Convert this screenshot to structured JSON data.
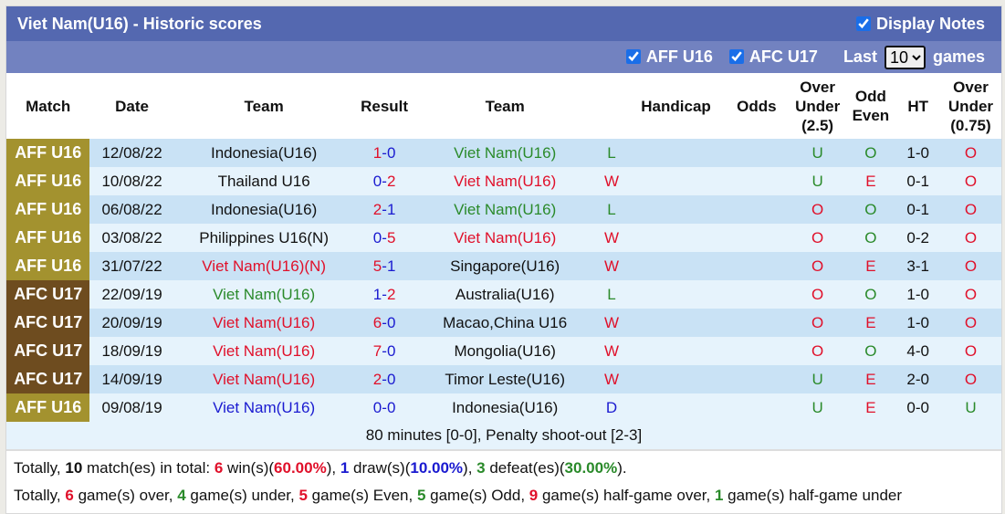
{
  "title": "Viet Nam(U16) - Historic scores",
  "display_notes": "Display Notes",
  "filters": [
    {
      "label": "AFF U16",
      "checked": true
    },
    {
      "label": "AFC U17",
      "checked": true
    }
  ],
  "last_label": "Last",
  "last_value": "10",
  "games_label": "games",
  "headers": [
    "Match",
    "Date",
    "Team",
    "Result",
    "Team",
    "",
    "Handicap",
    "Odds",
    "Over Under (2.5)",
    "Odd Even",
    "HT",
    "Over Under (0.75)"
  ],
  "colors": {
    "AFF U16": "#a3922f",
    "AFC U17": "#6e4c1f",
    "red": "#e0102a",
    "green": "#2a8a2a",
    "blue": "#1a1ad0"
  },
  "rows": [
    {
      "match": "AFF U16",
      "date": "12/08/22",
      "home": "Indonesia(U16)",
      "score": "1-0",
      "away": "Viet Nam(U16)",
      "wl": "L",
      "handicap": "",
      "odds": "",
      "ou": "U",
      "oe": "O",
      "ht": "1-0",
      "ou075": "O"
    },
    {
      "match": "AFF U16",
      "date": "10/08/22",
      "home": "Thailand U16",
      "score": "0-2",
      "away": "Viet Nam(U16)",
      "wl": "W",
      "handicap": "",
      "odds": "",
      "ou": "U",
      "oe": "E",
      "ht": "0-1",
      "ou075": "O"
    },
    {
      "match": "AFF U16",
      "date": "06/08/22",
      "home": "Indonesia(U16)",
      "score": "2-1",
      "away": "Viet Nam(U16)",
      "wl": "L",
      "handicap": "",
      "odds": "",
      "ou": "O",
      "oe": "O",
      "ht": "0-1",
      "ou075": "O"
    },
    {
      "match": "AFF U16",
      "date": "03/08/22",
      "home": "Philippines U16(N)",
      "score": "0-5",
      "away": "Viet Nam(U16)",
      "wl": "W",
      "handicap": "",
      "odds": "",
      "ou": "O",
      "oe": "O",
      "ht": "0-2",
      "ou075": "O"
    },
    {
      "match": "AFF U16",
      "date": "31/07/22",
      "home": "Viet Nam(U16)(N)",
      "score": "5-1",
      "away": "Singapore(U16)",
      "wl": "W",
      "handicap": "",
      "odds": "",
      "ou": "O",
      "oe": "E",
      "ht": "3-1",
      "ou075": "O"
    },
    {
      "match": "AFC U17",
      "date": "22/09/19",
      "home": "Viet Nam(U16)",
      "score": "1-2",
      "away": "Australia(U16)",
      "wl": "L",
      "handicap": "",
      "odds": "",
      "ou": "O",
      "oe": "O",
      "ht": "1-0",
      "ou075": "O"
    },
    {
      "match": "AFC U17",
      "date": "20/09/19",
      "home": "Viet Nam(U16)",
      "score": "6-0",
      "away": "Macao,China U16",
      "wl": "W",
      "handicap": "",
      "odds": "",
      "ou": "O",
      "oe": "E",
      "ht": "1-0",
      "ou075": "O"
    },
    {
      "match": "AFC U17",
      "date": "18/09/19",
      "home": "Viet Nam(U16)",
      "score": "7-0",
      "away": "Mongolia(U16)",
      "wl": "W",
      "handicap": "",
      "odds": "",
      "ou": "O",
      "oe": "O",
      "ht": "4-0",
      "ou075": "O"
    },
    {
      "match": "AFC U17",
      "date": "14/09/19",
      "home": "Viet Nam(U16)",
      "score": "2-0",
      "away": "Timor Leste(U16)",
      "wl": "W",
      "handicap": "",
      "odds": "",
      "ou": "U",
      "oe": "E",
      "ht": "2-0",
      "ou075": "O"
    },
    {
      "match": "AFF U16",
      "date": "09/08/19",
      "home": "Viet Nam(U16)",
      "score": "0-0",
      "away": "Indonesia(U16)",
      "wl": "D",
      "handicap": "",
      "odds": "",
      "ou": "U",
      "oe": "E",
      "ht": "0-0",
      "ou075": "U"
    }
  ],
  "note": "80 minutes [0-0], Penalty shoot-out [2-3]",
  "summary1": [
    [
      "Totally, ",
      ""
    ],
    [
      "10",
      "b"
    ],
    [
      " match(es) in total: ",
      ""
    ],
    [
      "6",
      "red"
    ],
    [
      " win(s)(",
      ""
    ],
    [
      "60.00%",
      "red"
    ],
    [
      "), ",
      ""
    ],
    [
      "1",
      "blu"
    ],
    [
      " draw(s)(",
      ""
    ],
    [
      "10.00%",
      "blu"
    ],
    [
      "), ",
      ""
    ],
    [
      "3",
      "grn"
    ],
    [
      " defeat(es)(",
      ""
    ],
    [
      "30.00%",
      "grn"
    ],
    [
      ").",
      ""
    ]
  ],
  "summary2": [
    [
      "Totally, ",
      ""
    ],
    [
      "6",
      "red"
    ],
    [
      " game(s) over, ",
      ""
    ],
    [
      "4",
      "grn"
    ],
    [
      " game(s) under, ",
      ""
    ],
    [
      "5",
      "red"
    ],
    [
      " game(s) Even, ",
      ""
    ],
    [
      "5",
      "grn"
    ],
    [
      " game(s) Odd, ",
      ""
    ],
    [
      "9",
      "red"
    ],
    [
      " game(s) half-game over, ",
      ""
    ],
    [
      "1",
      "grn"
    ],
    [
      " game(s) half-game under",
      ""
    ]
  ]
}
